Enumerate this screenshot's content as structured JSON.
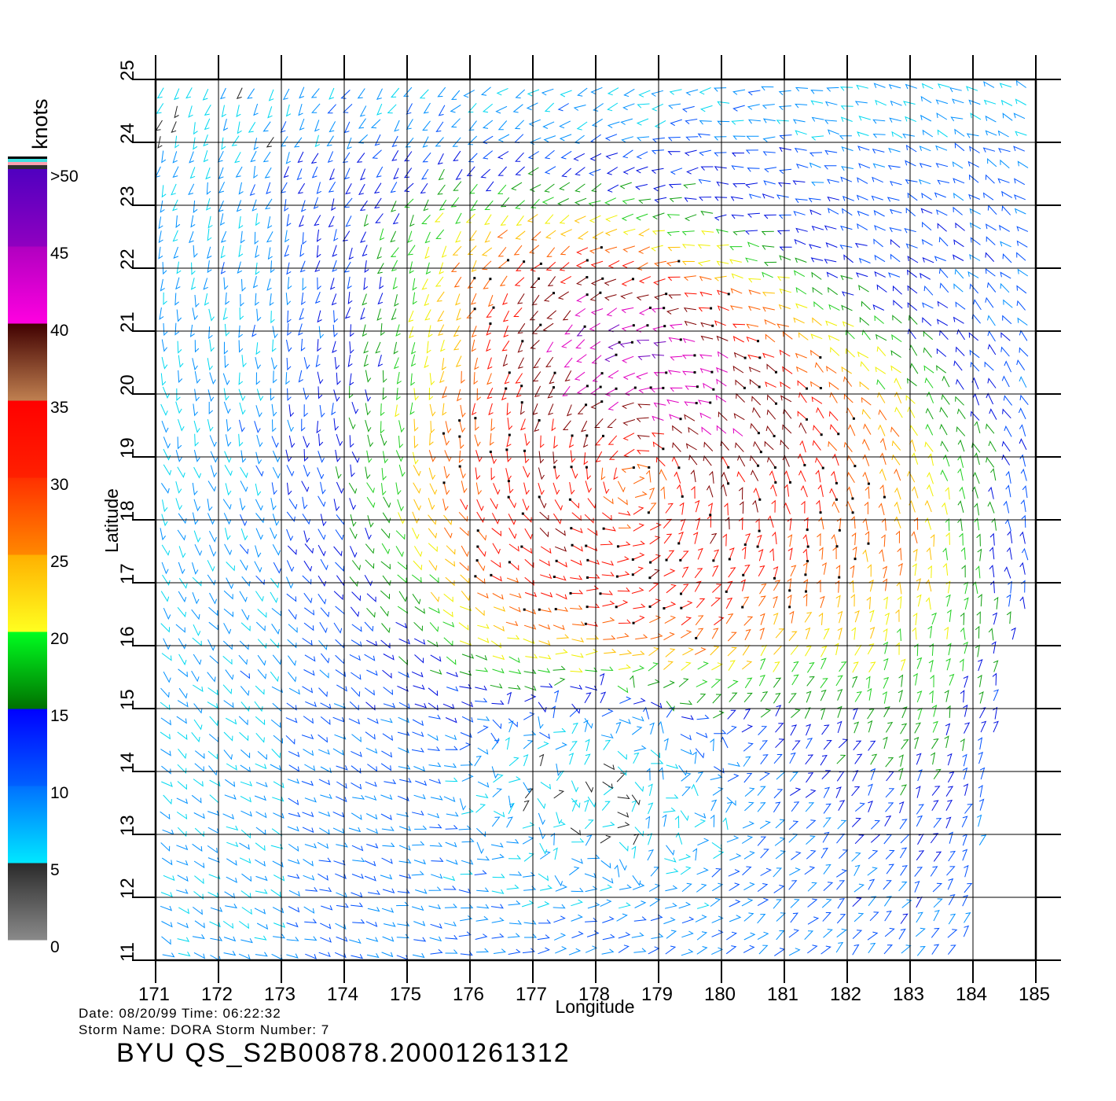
{
  "map": {
    "type": "wind-barb-map",
    "xlabel": "Longitude",
    "ylabel": "Latitude",
    "x_ticks": [
      "171",
      "172",
      "173",
      "174",
      "175",
      "176",
      "177",
      "178",
      "179",
      "180",
      "181",
      "182",
      "183",
      "184",
      "185"
    ],
    "y_ticks": [
      "11",
      "12",
      "13",
      "14",
      "15",
      "16",
      "17",
      "18",
      "19",
      "20",
      "21",
      "22",
      "23",
      "24",
      "25"
    ],
    "lon_range": [
      171,
      185
    ],
    "lat_range": [
      11,
      25
    ],
    "grid": true,
    "storm_center": {
      "lon": 178.6,
      "lat": 18.6
    }
  },
  "colorbar": {
    "unit": "knots",
    "labels": [
      ">50",
      "45",
      "40",
      "35",
      "30",
      "25",
      "20",
      "15",
      "10",
      "5",
      "0"
    ],
    "bands": [
      {
        "from": 0,
        "to": 5,
        "colors": [
          "#8a8a8a",
          "#2a2a2a"
        ]
      },
      {
        "from": 5,
        "to": 10,
        "colors": [
          "#00e8ff",
          "#0070ff"
        ]
      },
      {
        "from": 10,
        "to": 15,
        "colors": [
          "#0060ff",
          "#0000ff"
        ]
      },
      {
        "from": 15,
        "to": 20,
        "colors": [
          "#007000",
          "#00ff20"
        ]
      },
      {
        "from": 20,
        "to": 25,
        "colors": [
          "#ffff20",
          "#ffb000"
        ]
      },
      {
        "from": 25,
        "to": 30,
        "colors": [
          "#ff8800",
          "#ff3000"
        ]
      },
      {
        "from": 30,
        "to": 35,
        "colors": [
          "#ff2000",
          "#ff0000"
        ]
      },
      {
        "from": 35,
        "to": 40,
        "colors": [
          "#c08050",
          "#400000"
        ]
      },
      {
        "from": 40,
        "to": 45,
        "colors": [
          "#ff00e0",
          "#b000c0"
        ]
      },
      {
        "from": 45,
        "to": 50,
        "colors": [
          "#9000c0",
          "#5000c0"
        ]
      }
    ]
  },
  "footer": {
    "date_line": "Date: 08/20/99   Time: 06:22:32",
    "storm_line": "Storm  Name:  DORA    Storm  Number:  7",
    "file_id": "BYU  QS_S2B00878.20001261312"
  }
}
